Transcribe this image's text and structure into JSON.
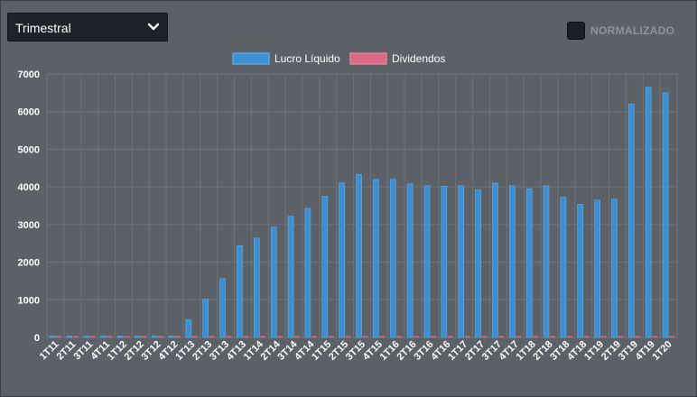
{
  "controls": {
    "period_value": "Trimestral",
    "normalize_label": "NORMALIZADO",
    "normalize_checked": false
  },
  "colors": {
    "lucro": "#3d8fd1",
    "lucro_border": "#5fb0f0",
    "dividendos": "#d96a86",
    "grid": "#6f747b",
    "background": "#5c6168"
  },
  "icons": {
    "dropdown": "chevron-down-icon"
  },
  "chart_data": {
    "type": "bar",
    "title": "",
    "xlabel": "",
    "ylabel": "",
    "ylim": [
      0,
      7000
    ],
    "yticks": [
      0,
      1000,
      2000,
      3000,
      4000,
      5000,
      6000,
      7000
    ],
    "legend_position": "top-center",
    "categories": [
      "1T11",
      "2T11",
      "3T11",
      "4T11",
      "1T12",
      "2T12",
      "3T12",
      "4T12",
      "1T13",
      "2T13",
      "3T13",
      "4T13",
      "1T14",
      "2T14",
      "3T14",
      "4T14",
      "1T15",
      "2T15",
      "3T15",
      "4T15",
      "1T16",
      "2T16",
      "3T16",
      "4T16",
      "1T17",
      "2T17",
      "3T17",
      "4T17",
      "1T18",
      "2T18",
      "3T18",
      "4T18",
      "1T19",
      "2T19",
      "3T19",
      "4T19",
      "1T20"
    ],
    "series": [
      {
        "name": "Lucro Líquido",
        "values": [
          0,
          0,
          0,
          0,
          0,
          0,
          0,
          0,
          470,
          1020,
          1560,
          2440,
          2640,
          2930,
          3220,
          3430,
          3750,
          4110,
          4330,
          4200,
          4200,
          4080,
          4030,
          4020,
          4030,
          3920,
          4100,
          4030,
          3950,
          4030,
          3720,
          3540,
          3650,
          3670,
          6200,
          6650,
          6500
        ]
      },
      {
        "name": "Dividendos",
        "values": [
          0,
          0,
          0,
          0,
          0,
          0,
          0,
          0,
          0,
          0,
          0,
          0,
          0,
          0,
          0,
          0,
          0,
          0,
          0,
          0,
          0,
          0,
          0,
          0,
          0,
          0,
          0,
          0,
          0,
          0,
          0,
          0,
          0,
          0,
          0,
          0,
          0
        ]
      }
    ]
  }
}
